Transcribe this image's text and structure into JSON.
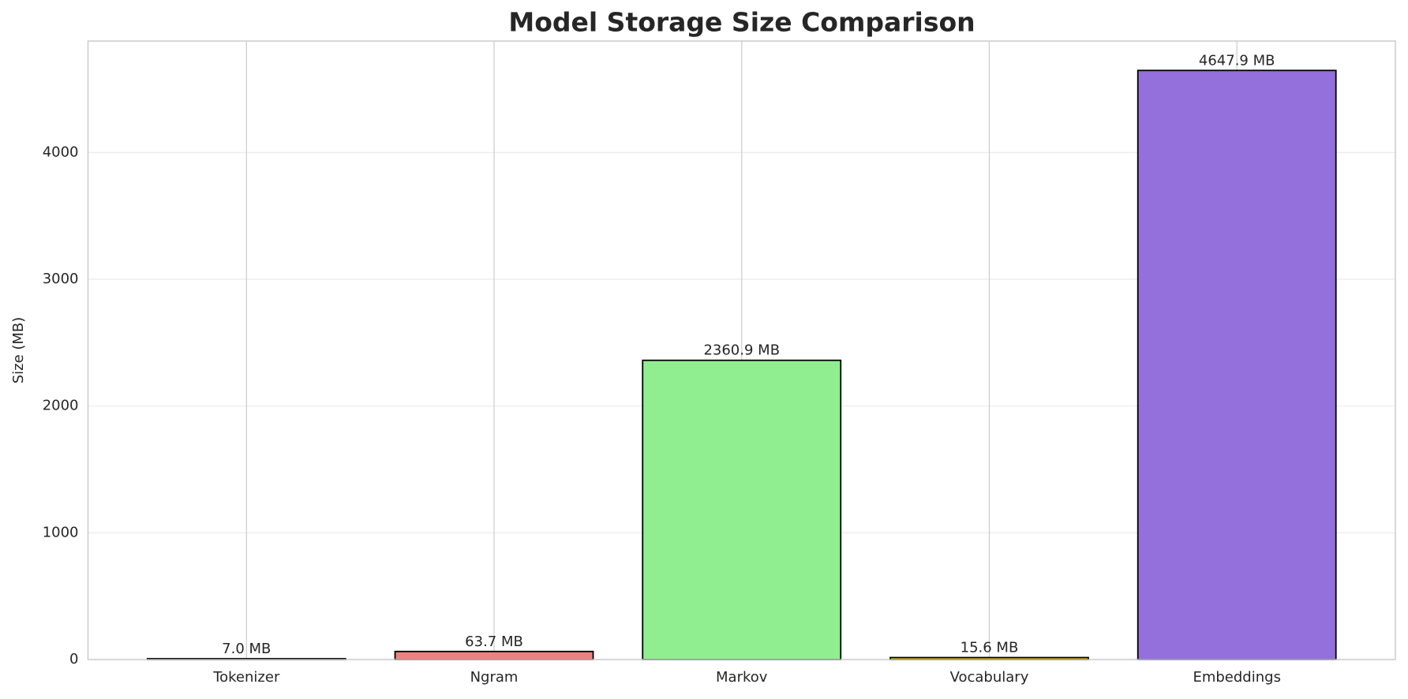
{
  "chart_data": {
    "type": "bar",
    "title": "Model Storage Size Comparison",
    "y_label": "Size (MB)",
    "categories": [
      "Tokenizer",
      "Ngram",
      "Markov",
      "Vocabulary",
      "Embeddings"
    ],
    "values": [
      7.0,
      63.7,
      2360.9,
      15.6,
      4647.9
    ],
    "value_labels": [
      "7.0 MB",
      "63.7 MB",
      "2360.9 MB",
      "15.6 MB",
      "4647.9 MB"
    ],
    "colors": [
      "#87ceeb",
      "#f08080",
      "#90ee90",
      "#ffd700",
      "#9370db"
    ],
    "ylim": [
      0,
      4880
    ],
    "yticks": [
      0,
      1000,
      2000,
      3000,
      4000
    ],
    "grid": true
  }
}
